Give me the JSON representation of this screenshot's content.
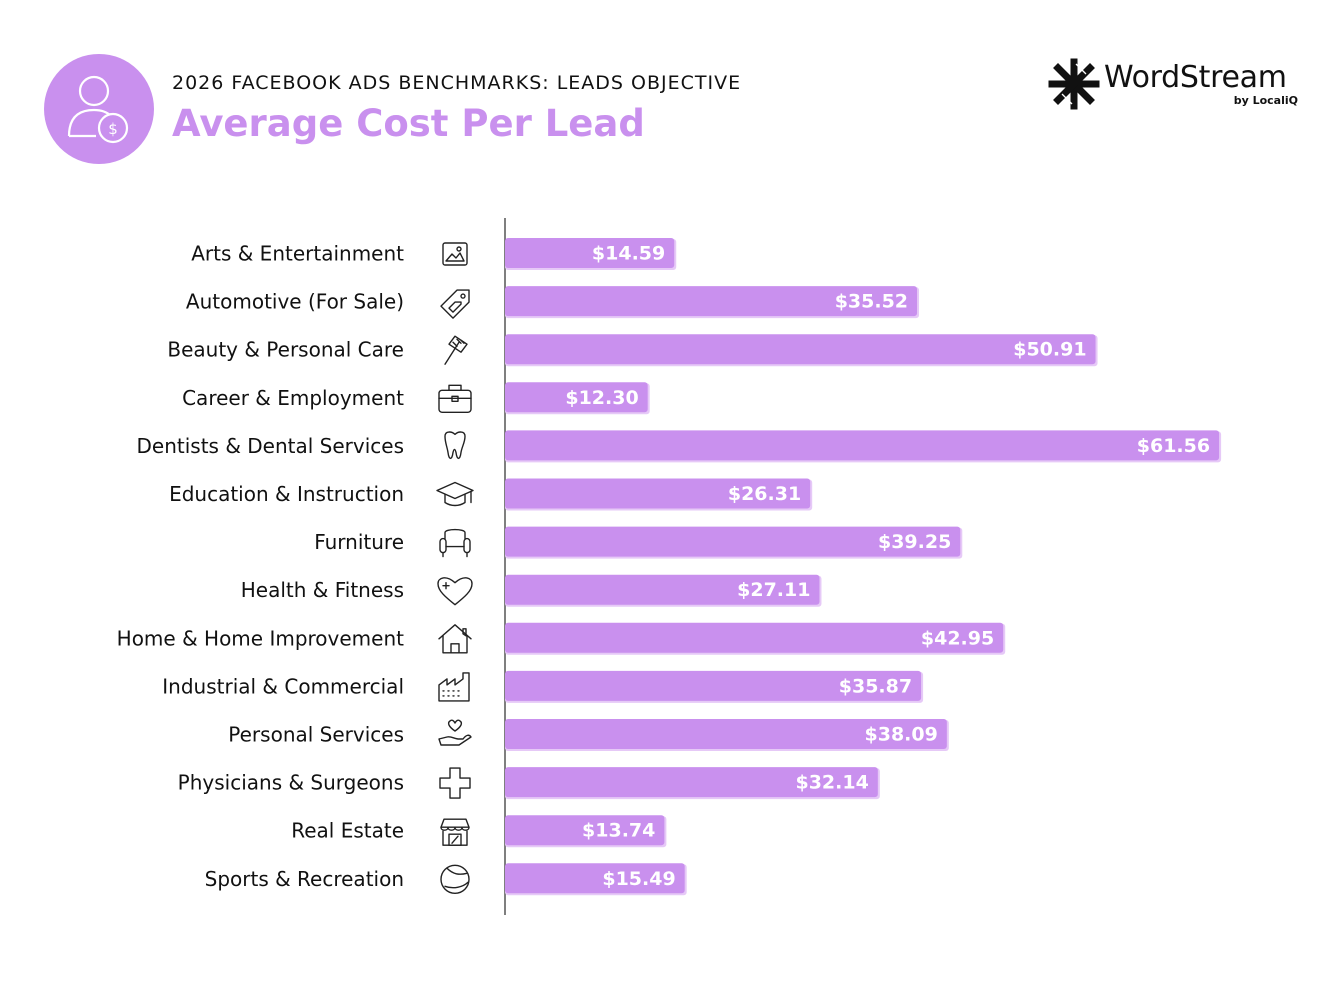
{
  "header": {
    "kicker": "2026 FACEBOOK ADS BENCHMARKS: LEADS OBJECTIVE",
    "title": "Average Cost Per Lead",
    "badge_icon": "person-dollar-icon"
  },
  "brand": {
    "name": "WordStream",
    "sub": "by LocaliQ",
    "icon": "wordstream-logo-icon"
  },
  "colors": {
    "accent": "#c990ee",
    "bar_shadow": "#e6c9f7",
    "axis": "#555555"
  },
  "chart_data": {
    "type": "bar",
    "orientation": "horizontal",
    "categories": [
      "Arts & Entertainment",
      "Automotive (For Sale)",
      "Beauty & Personal Care",
      "Career & Employment",
      "Dentists & Dental Services",
      "Education & Instruction",
      "Furniture",
      "Health & Fitness",
      "Home & Home Improvement",
      "Industrial & Commercial",
      "Personal Services",
      "Physicians & Surgeons",
      "Real Estate",
      "Sports & Recreation"
    ],
    "values": [
      14.59,
      35.52,
      50.91,
      12.3,
      61.56,
      26.31,
      39.25,
      27.11,
      42.95,
      35.87,
      38.09,
      32.14,
      13.74,
      15.49
    ],
    "value_labels": [
      "$14.59",
      "$35.52",
      "$50.91",
      "$12.30",
      "$61.56",
      "$26.31",
      "$39.25",
      "$27.11",
      "$42.95",
      "$35.87",
      "$38.09",
      "$32.14",
      "$13.74",
      "$15.49"
    ],
    "icons": [
      "picture-frame-icon",
      "car-tag-icon",
      "comb-icon",
      "briefcase-icon",
      "tooth-icon",
      "graduation-cap-icon",
      "armchair-icon",
      "heart-plus-icon",
      "house-icon",
      "factory-icon",
      "hand-heart-icon",
      "medical-cross-icon",
      "storefront-icon",
      "ball-icon"
    ],
    "title": "Average Cost Per Lead",
    "xlabel": "",
    "ylabel": "",
    "grid": false,
    "legend": "none"
  }
}
